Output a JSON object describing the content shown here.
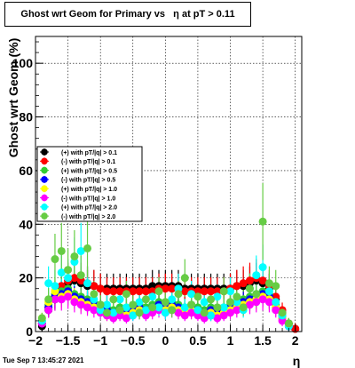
{
  "page": {
    "timestamp": "Tue Sep  7 13:45:27 2021"
  },
  "chart_data": {
    "type": "scatter",
    "title": "Ghost wrt Geom for Primary vs   η at pT > 0.11",
    "xlabel": "η",
    "ylabel": "Ghost wrt Geom (%)",
    "xlim": [
      -2.0,
      2.1
    ],
    "ylim": [
      0,
      110
    ],
    "xticks": [
      -2,
      -1.5,
      -1,
      -0.5,
      0,
      0.5,
      1,
      1.5,
      2
    ],
    "xtick_labels": [
      "−2",
      "−1.5",
      "−1",
      "−0.5",
      "0",
      "0.5",
      "1",
      "1.5",
      "2"
    ],
    "yticks": [
      0,
      20,
      40,
      60,
      80,
      100
    ],
    "ytick_labels": [
      "0",
      "20",
      "40",
      "60",
      "80",
      "100"
    ],
    "grid": true,
    "legend_position": "left-middle",
    "series": [
      {
        "name": "(+) with pT/|q| > 0.1",
        "color": "#000000",
        "marker": "circle",
        "points": [
          [
            -1.9,
            2
          ],
          [
            -1.8,
            8
          ],
          [
            -1.7,
            12
          ],
          [
            -1.6,
            16
          ],
          [
            -1.5,
            18
          ],
          [
            -1.4,
            19
          ],
          [
            -1.3,
            18
          ],
          [
            -1.2,
            17
          ],
          [
            -1.1,
            17
          ],
          [
            -1.0,
            16
          ],
          [
            -0.9,
            16
          ],
          [
            -0.8,
            16
          ],
          [
            -0.7,
            16
          ],
          [
            -0.6,
            16
          ],
          [
            -0.5,
            16
          ],
          [
            -0.4,
            16
          ],
          [
            -0.3,
            16
          ],
          [
            -0.2,
            17
          ],
          [
            -0.1,
            17
          ],
          [
            0.0,
            17
          ],
          [
            0.1,
            17
          ],
          [
            0.2,
            17
          ],
          [
            0.3,
            16
          ],
          [
            0.4,
            16
          ],
          [
            0.5,
            16
          ],
          [
            0.6,
            16
          ],
          [
            0.7,
            16
          ],
          [
            0.8,
            16
          ],
          [
            0.9,
            16
          ],
          [
            1.0,
            16
          ],
          [
            1.1,
            17
          ],
          [
            1.2,
            17
          ],
          [
            1.3,
            18
          ],
          [
            1.4,
            19
          ],
          [
            1.5,
            18
          ],
          [
            1.6,
            16
          ],
          [
            1.7,
            12
          ],
          [
            1.8,
            7
          ],
          [
            1.9,
            3
          ],
          [
            2.0,
            1
          ]
        ]
      },
      {
        "name": "(-) with pT/|q| > 0.1",
        "color": "#ff0000",
        "marker": "circle",
        "points": [
          [
            -1.9,
            3
          ],
          [
            -1.8,
            9
          ],
          [
            -1.7,
            13
          ],
          [
            -1.6,
            17
          ],
          [
            -1.5,
            19
          ],
          [
            -1.4,
            20
          ],
          [
            -1.3,
            19
          ],
          [
            -1.2,
            18
          ],
          [
            -1.1,
            17
          ],
          [
            -1.0,
            16
          ],
          [
            -0.9,
            15
          ],
          [
            -0.8,
            15
          ],
          [
            -0.7,
            15
          ],
          [
            -0.6,
            15
          ],
          [
            -0.5,
            15
          ],
          [
            -0.4,
            15
          ],
          [
            -0.3,
            15
          ],
          [
            -0.2,
            15
          ],
          [
            -0.1,
            16
          ],
          [
            0.0,
            16
          ],
          [
            0.1,
            16
          ],
          [
            0.2,
            16
          ],
          [
            0.3,
            15
          ],
          [
            0.4,
            15
          ],
          [
            0.5,
            15
          ],
          [
            0.6,
            15
          ],
          [
            0.7,
            15
          ],
          [
            0.8,
            15
          ],
          [
            0.9,
            15
          ],
          [
            1.0,
            16
          ],
          [
            1.1,
            17
          ],
          [
            1.2,
            18
          ],
          [
            1.3,
            19
          ],
          [
            1.4,
            20
          ],
          [
            1.5,
            19
          ],
          [
            1.6,
            17
          ],
          [
            1.7,
            13
          ],
          [
            1.8,
            8
          ],
          [
            1.9,
            3
          ],
          [
            2.0,
            1
          ]
        ]
      },
      {
        "name": "(+) with pT/|q| > 0.5",
        "color": "#33cc33",
        "marker": "circle",
        "points": [
          [
            -1.9,
            4
          ],
          [
            -1.8,
            10
          ],
          [
            -1.7,
            14
          ],
          [
            -1.6,
            15
          ],
          [
            -1.5,
            16
          ],
          [
            -1.4,
            14
          ],
          [
            -1.3,
            13
          ],
          [
            -1.2,
            12
          ],
          [
            -1.1,
            11
          ],
          [
            -1.0,
            10
          ],
          [
            -0.9,
            9
          ],
          [
            -0.8,
            8
          ],
          [
            -0.7,
            9
          ],
          [
            -0.6,
            8
          ],
          [
            -0.5,
            9
          ],
          [
            -0.4,
            10
          ],
          [
            -0.3,
            9
          ],
          [
            -0.2,
            10
          ],
          [
            -0.1,
            11
          ],
          [
            0.0,
            10
          ],
          [
            0.1,
            11
          ],
          [
            0.2,
            10
          ],
          [
            0.3,
            9
          ],
          [
            0.4,
            10
          ],
          [
            0.5,
            9
          ],
          [
            0.6,
            8
          ],
          [
            0.7,
            9
          ],
          [
            0.8,
            8
          ],
          [
            0.9,
            9
          ],
          [
            1.0,
            10
          ],
          [
            1.1,
            11
          ],
          [
            1.2,
            12
          ],
          [
            1.3,
            13
          ],
          [
            1.4,
            14
          ],
          [
            1.5,
            15
          ],
          [
            1.6,
            14
          ],
          [
            1.7,
            10
          ],
          [
            1.8,
            6
          ],
          [
            1.9,
            3
          ]
        ]
      },
      {
        "name": "(-) with pT/|q| > 0.5",
        "color": "#0000ff",
        "marker": "circle",
        "points": [
          [
            -1.9,
            3
          ],
          [
            -1.8,
            9
          ],
          [
            -1.7,
            13
          ],
          [
            -1.6,
            14
          ],
          [
            -1.5,
            15
          ],
          [
            -1.4,
            13
          ],
          [
            -1.3,
            12
          ],
          [
            -1.2,
            11
          ],
          [
            -1.1,
            10
          ],
          [
            -1.0,
            9
          ],
          [
            -0.9,
            8
          ],
          [
            -0.8,
            7
          ],
          [
            -0.7,
            8
          ],
          [
            -0.6,
            7
          ],
          [
            -0.5,
            8
          ],
          [
            -0.4,
            9
          ],
          [
            -0.3,
            8
          ],
          [
            -0.2,
            9
          ],
          [
            -0.1,
            10
          ],
          [
            0.0,
            9
          ],
          [
            0.1,
            10
          ],
          [
            0.2,
            9
          ],
          [
            0.3,
            8
          ],
          [
            0.4,
            9
          ],
          [
            0.5,
            8
          ],
          [
            0.6,
            7
          ],
          [
            0.7,
            8
          ],
          [
            0.8,
            7
          ],
          [
            0.9,
            8
          ],
          [
            1.0,
            9
          ],
          [
            1.1,
            10
          ],
          [
            1.2,
            11
          ],
          [
            1.3,
            12
          ],
          [
            1.4,
            13
          ],
          [
            1.5,
            14
          ],
          [
            1.6,
            13
          ],
          [
            1.7,
            9
          ],
          [
            1.8,
            5
          ],
          [
            1.9,
            2
          ]
        ]
      },
      {
        "name": "(+) with pT/|q| > 1.0",
        "color": "#ffff00",
        "marker": "circle",
        "points": [
          [
            -1.9,
            5
          ],
          [
            -1.8,
            11
          ],
          [
            -1.7,
            15
          ],
          [
            -1.6,
            13
          ],
          [
            -1.5,
            14
          ],
          [
            -1.4,
            12
          ],
          [
            -1.3,
            11
          ],
          [
            -1.2,
            10
          ],
          [
            -1.1,
            9
          ],
          [
            -1.0,
            7
          ],
          [
            -0.9,
            6
          ],
          [
            -0.8,
            6
          ],
          [
            -0.7,
            7
          ],
          [
            -0.6,
            6
          ],
          [
            -0.5,
            7
          ],
          [
            -0.4,
            8
          ],
          [
            -0.3,
            7
          ],
          [
            -0.2,
            8
          ],
          [
            -0.1,
            9
          ],
          [
            0.0,
            8
          ],
          [
            0.1,
            9
          ],
          [
            0.2,
            8
          ],
          [
            0.3,
            7
          ],
          [
            0.4,
            8
          ],
          [
            0.5,
            7
          ],
          [
            0.6,
            6
          ],
          [
            0.7,
            7
          ],
          [
            0.8,
            6
          ],
          [
            0.9,
            7
          ],
          [
            1.0,
            8
          ],
          [
            1.1,
            9
          ],
          [
            1.2,
            10
          ],
          [
            1.3,
            11
          ],
          [
            1.4,
            12
          ],
          [
            1.5,
            13
          ],
          [
            1.6,
            12
          ],
          [
            1.7,
            9
          ],
          [
            1.8,
            5
          ],
          [
            1.9,
            2
          ]
        ]
      },
      {
        "name": "(-) with pT/|q| > 1.0",
        "color": "#ff00ff",
        "marker": "circle",
        "points": [
          [
            -1.9,
            3
          ],
          [
            -1.8,
            8
          ],
          [
            -1.7,
            12
          ],
          [
            -1.6,
            12
          ],
          [
            -1.5,
            13
          ],
          [
            -1.4,
            11
          ],
          [
            -1.3,
            10
          ],
          [
            -1.2,
            9
          ],
          [
            -1.1,
            8
          ],
          [
            -1.0,
            7
          ],
          [
            -0.9,
            6
          ],
          [
            -0.8,
            5
          ],
          [
            -0.7,
            6
          ],
          [
            -0.6,
            5
          ],
          [
            -0.5,
            6
          ],
          [
            -0.4,
            7
          ],
          [
            -0.3,
            6
          ],
          [
            -0.2,
            7
          ],
          [
            -0.1,
            8
          ],
          [
            0.0,
            7
          ],
          [
            0.1,
            8
          ],
          [
            0.2,
            7
          ],
          [
            0.3,
            6
          ],
          [
            0.4,
            7
          ],
          [
            0.5,
            6
          ],
          [
            0.6,
            5
          ],
          [
            0.7,
            6
          ],
          [
            0.8,
            5
          ],
          [
            0.9,
            6
          ],
          [
            1.0,
            7
          ],
          [
            1.1,
            8
          ],
          [
            1.2,
            9
          ],
          [
            1.3,
            10
          ],
          [
            1.4,
            11
          ],
          [
            1.5,
            12
          ],
          [
            1.6,
            11
          ],
          [
            1.7,
            8
          ],
          [
            1.8,
            4
          ],
          [
            1.9,
            2
          ]
        ]
      },
      {
        "name": "(+) with pT/|q| > 2.0",
        "color": "#00ffff",
        "marker": "circle",
        "points": [
          [
            -1.9,
            4
          ],
          [
            -1.8,
            18
          ],
          [
            -1.7,
            17
          ],
          [
            -1.6,
            22
          ],
          [
            -1.5,
            20
          ],
          [
            -1.4,
            26
          ],
          [
            -1.3,
            30
          ],
          [
            -1.2,
            18
          ],
          [
            -1.1,
            12
          ],
          [
            -1.0,
            8
          ],
          [
            -0.9,
            10
          ],
          [
            -0.8,
            7
          ],
          [
            -0.7,
            12
          ],
          [
            -0.6,
            9
          ],
          [
            -0.5,
            6
          ],
          [
            -0.4,
            11
          ],
          [
            -0.3,
            8
          ],
          [
            -0.2,
            13
          ],
          [
            -0.1,
            9
          ],
          [
            0.0,
            7
          ],
          [
            0.1,
            12
          ],
          [
            0.2,
            16
          ],
          [
            0.3,
            9
          ],
          [
            0.4,
            14
          ],
          [
            0.5,
            8
          ],
          [
            0.6,
            11
          ],
          [
            0.7,
            6
          ],
          [
            0.8,
            13
          ],
          [
            0.9,
            9
          ],
          [
            1.0,
            15
          ],
          [
            1.1,
            11
          ],
          [
            1.2,
            8
          ],
          [
            1.3,
            16
          ],
          [
            1.4,
            21
          ],
          [
            1.5,
            24
          ],
          [
            1.6,
            15
          ],
          [
            1.7,
            11
          ],
          [
            1.8,
            6
          ],
          [
            1.9,
            2
          ]
        ]
      },
      {
        "name": "(-) with pT/|q| > 2.0",
        "color": "#66cc44",
        "marker": "circle",
        "points": [
          [
            -1.9,
            5
          ],
          [
            -1.8,
            12
          ],
          [
            -1.7,
            27
          ],
          [
            -1.6,
            30
          ],
          [
            -1.5,
            23
          ],
          [
            -1.4,
            28
          ],
          [
            -1.3,
            21
          ],
          [
            -1.2,
            31
          ],
          [
            -1.1,
            14
          ],
          [
            -1.0,
            10
          ],
          [
            -0.9,
            7
          ],
          [
            -0.8,
            12
          ],
          [
            -0.7,
            8
          ],
          [
            -0.6,
            14
          ],
          [
            -0.5,
            10
          ],
          [
            -0.4,
            7
          ],
          [
            -0.3,
            12
          ],
          [
            -0.2,
            9
          ],
          [
            -0.1,
            15
          ],
          [
            0.0,
            11
          ],
          [
            0.1,
            8
          ],
          [
            0.2,
            14
          ],
          [
            0.3,
            20
          ],
          [
            0.4,
            10
          ],
          [
            0.5,
            13
          ],
          [
            0.6,
            7
          ],
          [
            0.7,
            12
          ],
          [
            0.8,
            9
          ],
          [
            0.9,
            15
          ],
          [
            1.0,
            11
          ],
          [
            1.1,
            13
          ],
          [
            1.2,
            9
          ],
          [
            1.3,
            16
          ],
          [
            1.4,
            14
          ],
          [
            1.5,
            41
          ],
          [
            1.6,
            18
          ],
          [
            1.7,
            17
          ],
          [
            1.8,
            7
          ],
          [
            1.9,
            3
          ]
        ]
      }
    ]
  }
}
